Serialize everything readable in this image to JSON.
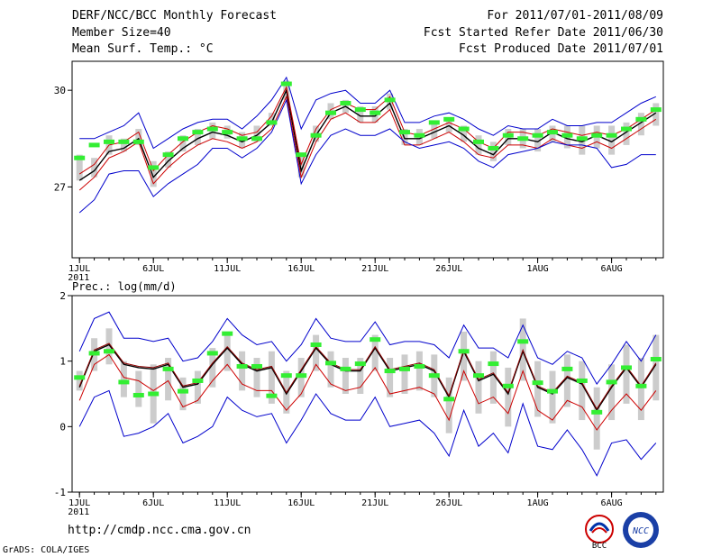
{
  "header": {
    "title": "DERF/NCC/BCC Monthly Forecast",
    "member_size": "Member Size=40",
    "variable1": "Mean Surf. Temp.: °C",
    "for_range": "For 2011/07/01-2011/08/09",
    "fcst_started": "Fcst Started Refer Date 2011/06/30",
    "fcst_produced": "Fcst Produced Date 2011/07/01"
  },
  "footer": {
    "url": "http://cmdp.ncc.cma.gov.cn",
    "grads": "GrADS: COLA/IGES"
  },
  "logos": {
    "bcc": "BCC",
    "ncc": "NCC"
  },
  "colors": {
    "black": "#000000",
    "red": "#cc0000",
    "blue": "#0000cc",
    "green": "#33ee33",
    "box": "#cccccc"
  },
  "chart_data": [
    {
      "type": "line",
      "title": "Mean Surf. Temp.: °C",
      "x_tick_labels": [
        "1JUL",
        "6JUL",
        "11JUL",
        "16JUL",
        "21JUL",
        "26JUL",
        "1AUG",
        "6AUG"
      ],
      "x_tick_days": [
        1,
        6,
        11,
        16,
        21,
        26,
        32,
        37
      ],
      "year_label": "2011",
      "days": [
        1,
        2,
        3,
        4,
        5,
        6,
        7,
        8,
        9,
        10,
        11,
        12,
        13,
        14,
        15,
        16,
        17,
        18,
        19,
        20,
        21,
        22,
        23,
        24,
        25,
        26,
        27,
        28,
        29,
        30,
        31,
        32,
        33,
        34,
        35,
        36,
        37,
        38,
        39,
        40
      ],
      "xlim": [
        0.5,
        40.5
      ],
      "ylim": [
        24.8,
        30.9
      ],
      "y_ticks": [
        30,
        27
      ],
      "series": [
        {
          "name": "ensemble_mean",
          "color": "#000000",
          "values": [
            27.2,
            27.5,
            28.1,
            28.2,
            28.5,
            27.3,
            27.8,
            28.2,
            28.5,
            28.7,
            28.6,
            28.4,
            28.6,
            29.0,
            30.0,
            27.5,
            28.6,
            29.3,
            29.5,
            29.2,
            29.2,
            29.6,
            28.5,
            28.5,
            28.7,
            28.9,
            28.6,
            28.2,
            28.0,
            28.5,
            28.5,
            28.4,
            28.7,
            28.5,
            28.4,
            28.6,
            28.4,
            28.7,
            29.0,
            29.3
          ]
        },
        {
          "name": "ensemble_mean_alt",
          "color": "#cc0000",
          "values": [
            27.4,
            27.7,
            28.3,
            28.4,
            28.7,
            27.5,
            28.0,
            28.4,
            28.7,
            28.9,
            28.8,
            28.6,
            28.7,
            29.2,
            30.1,
            27.7,
            28.8,
            29.4,
            29.6,
            29.4,
            29.4,
            29.8,
            28.7,
            28.6,
            28.8,
            29.0,
            28.8,
            28.4,
            28.2,
            28.7,
            28.7,
            28.6,
            28.8,
            28.7,
            28.6,
            28.7,
            28.6,
            28.8,
            29.1,
            29.4
          ]
        },
        {
          "name": "min",
          "color": "#cc0000",
          "values": [
            26.9,
            27.3,
            27.9,
            28.1,
            28.4,
            27.1,
            27.6,
            28.0,
            28.3,
            28.5,
            28.4,
            28.2,
            28.4,
            28.8,
            29.8,
            27.3,
            28.4,
            29.1,
            29.3,
            29.0,
            29.0,
            29.4,
            28.3,
            28.3,
            28.5,
            28.7,
            28.4,
            28.0,
            27.9,
            28.3,
            28.3,
            28.2,
            28.5,
            28.3,
            28.2,
            28.4,
            28.2,
            28.5,
            28.8,
            29.1
          ]
        },
        {
          "name": "upper_bound",
          "color": "#0000cc",
          "values": [
            28.5,
            28.5,
            28.7,
            28.9,
            29.3,
            28.2,
            28.5,
            28.8,
            29.0,
            29.1,
            29.1,
            28.8,
            29.2,
            29.7,
            30.4,
            28.8,
            29.7,
            29.9,
            30.0,
            29.6,
            29.6,
            30.0,
            29.0,
            29.0,
            29.2,
            29.3,
            29.1,
            28.8,
            28.6,
            28.9,
            28.8,
            28.8,
            29.1,
            28.9,
            28.9,
            29.0,
            29.0,
            29.3,
            29.6,
            29.8
          ]
        },
        {
          "name": "lower_bound",
          "color": "#0000cc",
          "values": [
            26.2,
            26.6,
            27.4,
            27.5,
            27.5,
            26.7,
            27.1,
            27.4,
            27.7,
            28.2,
            28.2,
            27.9,
            28.2,
            28.7,
            29.7,
            27.1,
            28.0,
            28.6,
            28.8,
            28.6,
            28.6,
            28.8,
            28.4,
            28.2,
            28.3,
            28.4,
            28.2,
            27.8,
            27.6,
            28.0,
            28.1,
            28.2,
            28.4,
            28.3,
            28.3,
            28.2,
            27.6,
            27.7,
            28.0,
            28.0
          ]
        }
      ],
      "green_marks": [
        27.9,
        28.3,
        28.4,
        28.4,
        28.4,
        27.6,
        28.0,
        28.5,
        28.7,
        28.8,
        28.7,
        28.5,
        28.5,
        29.0,
        30.2,
        28.0,
        28.6,
        29.3,
        29.6,
        29.4,
        29.3,
        29.7,
        28.7,
        28.6,
        29.0,
        29.1,
        28.8,
        28.4,
        28.2,
        28.6,
        28.5,
        28.6,
        28.7,
        28.6,
        28.5,
        28.6,
        28.6,
        28.8,
        29.1,
        29.4
      ],
      "box_ranges": [
        [
          27.2,
          28.0
        ],
        [
          27.3,
          27.9
        ],
        [
          28.0,
          28.6
        ],
        [
          28.1,
          28.5
        ],
        [
          28.3,
          28.8
        ],
        [
          27.0,
          27.8
        ],
        [
          27.6,
          28.1
        ],
        [
          28.1,
          28.6
        ],
        [
          28.3,
          28.8
        ],
        [
          28.5,
          29.0
        ],
        [
          28.5,
          28.9
        ],
        [
          28.2,
          28.7
        ],
        [
          28.4,
          28.9
        ],
        [
          28.9,
          29.3
        ],
        [
          29.7,
          30.3
        ],
        [
          27.3,
          28.0
        ],
        [
          28.4,
          28.9
        ],
        [
          29.1,
          29.6
        ],
        [
          29.3,
          29.7
        ],
        [
          29.0,
          29.5
        ],
        [
          29.0,
          29.5
        ],
        [
          29.4,
          29.9
        ],
        [
          28.3,
          28.8
        ],
        [
          28.3,
          28.8
        ],
        [
          28.5,
          29.0
        ],
        [
          28.7,
          29.1
        ],
        [
          28.4,
          28.9
        ],
        [
          28.0,
          28.6
        ],
        [
          27.8,
          28.4
        ],
        [
          28.3,
          28.8
        ],
        [
          28.2,
          28.8
        ],
        [
          28.1,
          28.8
        ],
        [
          28.4,
          28.9
        ],
        [
          28.2,
          28.9
        ],
        [
          28.0,
          28.9
        ],
        [
          28.2,
          28.9
        ],
        [
          28.0,
          28.9
        ],
        [
          28.3,
          29.0
        ],
        [
          28.6,
          29.3
        ],
        [
          28.9,
          29.6
        ]
      ]
    },
    {
      "type": "line",
      "title": "Prec.: log(mm/d)",
      "x_tick_labels": [
        "1JUL",
        "6JUL",
        "11JUL",
        "16JUL",
        "21JUL",
        "26JUL",
        "1AUG",
        "6AUG"
      ],
      "x_tick_days": [
        1,
        6,
        11,
        16,
        21,
        26,
        32,
        37
      ],
      "year_label": "2011",
      "days": [
        1,
        2,
        3,
        4,
        5,
        6,
        7,
        8,
        9,
        10,
        11,
        12,
        13,
        14,
        15,
        16,
        17,
        18,
        19,
        20,
        21,
        22,
        23,
        24,
        25,
        26,
        27,
        28,
        29,
        30,
        31,
        32,
        33,
        34,
        35,
        36,
        37,
        38,
        39,
        40
      ],
      "xlim": [
        0.5,
        40.5
      ],
      "ylim": [
        -1,
        2
      ],
      "y_ticks": [
        2,
        1,
        0,
        -1
      ],
      "series": [
        {
          "name": "ensemble_mean",
          "color": "#000000",
          "values": [
            0.6,
            1.15,
            1.25,
            0.95,
            0.9,
            0.88,
            0.95,
            0.6,
            0.65,
            0.95,
            1.2,
            0.95,
            0.85,
            0.9,
            0.5,
            0.85,
            1.2,
            0.95,
            0.85,
            0.85,
            1.2,
            0.85,
            0.9,
            0.95,
            0.85,
            0.45,
            1.15,
            0.7,
            0.8,
            0.5,
            1.15,
            0.6,
            0.5,
            0.75,
            0.65,
            0.25,
            0.6,
            0.9,
            0.6,
            0.95
          ]
        },
        {
          "name": "ensemble_mean_alt",
          "color": "#8b0000",
          "values": [
            0.62,
            1.17,
            1.27,
            0.97,
            0.92,
            0.9,
            0.97,
            0.62,
            0.67,
            0.97,
            1.22,
            0.97,
            0.87,
            0.92,
            0.52,
            0.87,
            1.22,
            0.97,
            0.87,
            0.87,
            1.22,
            0.87,
            0.92,
            0.97,
            0.87,
            0.47,
            1.17,
            0.72,
            0.82,
            0.52,
            1.17,
            0.62,
            0.52,
            0.77,
            0.67,
            0.27,
            0.62,
            0.92,
            0.62,
            0.97
          ]
        },
        {
          "name": "min",
          "color": "#cc0000",
          "values": [
            0.4,
            0.95,
            1.1,
            0.75,
            0.7,
            0.55,
            0.7,
            0.3,
            0.4,
            0.7,
            0.95,
            0.65,
            0.55,
            0.55,
            0.25,
            0.5,
            0.95,
            0.65,
            0.55,
            0.6,
            0.9,
            0.5,
            0.55,
            0.6,
            0.5,
            0.1,
            0.85,
            0.35,
            0.45,
            0.2,
            0.85,
            0.25,
            0.1,
            0.4,
            0.3,
            -0.05,
            0.25,
            0.5,
            0.25,
            0.55
          ]
        },
        {
          "name": "upper_bound",
          "color": "#0000cc",
          "values": [
            1.15,
            1.65,
            1.75,
            1.35,
            1.35,
            1.3,
            1.35,
            1.0,
            1.05,
            1.3,
            1.65,
            1.4,
            1.25,
            1.3,
            1.0,
            1.25,
            1.65,
            1.35,
            1.3,
            1.3,
            1.6,
            1.25,
            1.3,
            1.3,
            1.25,
            1.05,
            1.55,
            1.2,
            1.2,
            1.05,
            1.55,
            1.05,
            0.95,
            1.15,
            1.05,
            0.65,
            0.95,
            1.3,
            1.0,
            1.4
          ]
        },
        {
          "name": "lower_bound",
          "color": "#0000cc",
          "values": [
            0.0,
            0.45,
            0.55,
            -0.15,
            -0.1,
            0.0,
            0.2,
            -0.25,
            -0.15,
            0.0,
            0.45,
            0.25,
            0.15,
            0.2,
            -0.25,
            0.1,
            0.5,
            0.2,
            0.1,
            0.1,
            0.45,
            0.0,
            0.05,
            0.1,
            -0.1,
            -0.45,
            0.25,
            -0.3,
            -0.1,
            -0.4,
            0.35,
            -0.3,
            -0.35,
            -0.05,
            -0.35,
            -0.75,
            -0.25,
            -0.2,
            -0.5,
            -0.25
          ]
        }
      ],
      "green_marks": [
        0.75,
        1.12,
        1.15,
        0.68,
        0.48,
        0.5,
        0.88,
        0.54,
        0.7,
        1.12,
        1.42,
        0.92,
        0.92,
        0.47,
        0.78,
        0.78,
        1.25,
        0.97,
        0.88,
        0.96,
        1.33,
        0.85,
        0.88,
        0.92,
        0.78,
        0.42,
        1.15,
        0.78,
        0.96,
        0.62,
        1.3,
        0.67,
        0.54,
        0.88,
        0.7,
        0.22,
        0.68,
        0.9,
        0.62,
        1.03
      ],
      "box_ranges": [
        [
          0.55,
          0.85
        ],
        [
          0.85,
          1.35
        ],
        [
          0.95,
          1.5
        ],
        [
          0.45,
          1.0
        ],
        [
          0.3,
          0.85
        ],
        [
          0.05,
          0.95
        ],
        [
          0.4,
          1.05
        ],
        [
          0.25,
          0.75
        ],
        [
          0.35,
          0.85
        ],
        [
          0.6,
          1.2
        ],
        [
          0.85,
          1.45
        ],
        [
          0.55,
          1.15
        ],
        [
          0.45,
          1.05
        ],
        [
          0.35,
          1.15
        ],
        [
          0.2,
          0.85
        ],
        [
          0.45,
          1.05
        ],
        [
          0.85,
          1.4
        ],
        [
          0.6,
          1.15
        ],
        [
          0.5,
          1.05
        ],
        [
          0.5,
          1.05
        ],
        [
          0.85,
          1.4
        ],
        [
          0.45,
          1.05
        ],
        [
          0.5,
          1.1
        ],
        [
          0.55,
          1.15
        ],
        [
          0.45,
          1.1
        ],
        [
          -0.1,
          0.75
        ],
        [
          0.7,
          1.45
        ],
        [
          0.2,
          1.0
        ],
        [
          0.35,
          1.15
        ],
        [
          0.0,
          0.9
        ],
        [
          0.7,
          1.65
        ],
        [
          0.15,
          1.0
        ],
        [
          0.05,
          0.85
        ],
        [
          0.3,
          1.1
        ],
        [
          0.1,
          1.0
        ],
        [
          -0.35,
          0.6
        ],
        [
          0.1,
          0.95
        ],
        [
          0.35,
          1.25
        ],
        [
          0.1,
          1.05
        ],
        [
          0.4,
          1.4
        ]
      ]
    }
  ]
}
